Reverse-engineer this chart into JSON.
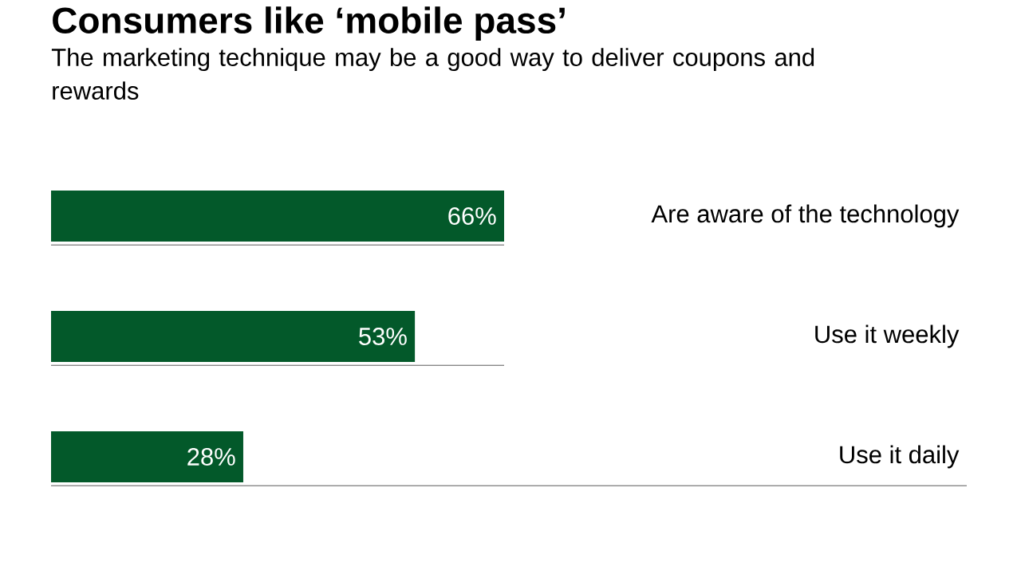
{
  "chart_data": {
    "type": "bar",
    "orientation": "horizontal",
    "title": "Consumers like ‘mobile pass’",
    "subtitle": "The marketing technique may be a good way to deliver coupons and rewards",
    "categories": [
      "Are aware of the technology",
      "Use it weekly",
      "Use it daily"
    ],
    "values": [
      66,
      53,
      28
    ],
    "value_labels": [
      "66%",
      "53%",
      "28%"
    ],
    "color": "#03592a",
    "tick_labels": "y",
    "grid": "y"
  }
}
